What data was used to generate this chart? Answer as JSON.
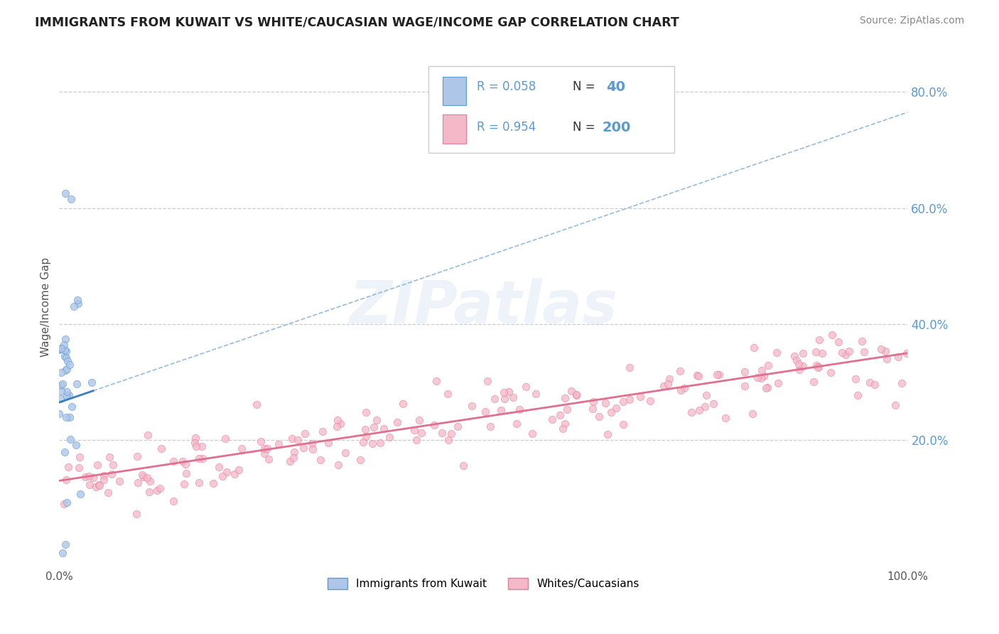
{
  "title": "IMMIGRANTS FROM KUWAIT VS WHITE/CAUCASIAN WAGE/INCOME GAP CORRELATION CHART",
  "source": "Source: ZipAtlas.com",
  "ylabel": "Wage/Income Gap",
  "xlim": [
    0,
    1.0
  ],
  "ylim": [
    -0.02,
    0.88
  ],
  "kuwait_color": "#aec6e8",
  "kuwait_edge_color": "#5b9bd5",
  "white_color": "#f4b8c8",
  "white_edge_color": "#e87a9a",
  "trend_kuwait_solid_color": "#3a7fc1",
  "trend_kuwait_dashed_color": "#8ab4d8",
  "trend_white_color": "#e07090",
  "R_kuwait": 0.058,
  "N_kuwait": 40,
  "R_white": 0.954,
  "N_white": 200,
  "background_color": "#ffffff",
  "grid_color": "#cccccc",
  "legend_label_kuwait": "Immigrants from Kuwait",
  "legend_label_white": "Whites/Caucasians",
  "title_color": "#222222",
  "right_axis_color": "#5b9bd5",
  "source_color": "#888888",
  "watermark_color": "#dce8f5",
  "white_slope": 0.22,
  "white_intercept": 0.13,
  "white_noise_std": 0.028,
  "kuwait_slope": 0.5,
  "kuwait_intercept": 0.265
}
